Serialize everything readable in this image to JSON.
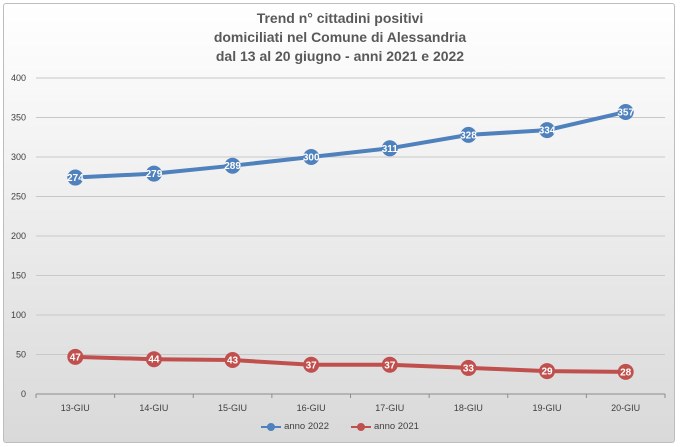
{
  "chart_data": {
    "type": "line",
    "title": [
      "Trend n° cittadini positivi",
      "domiciliati nel Comune di Alessandria",
      "dal 13 al 20 giugno - anni 2021 e 2022"
    ],
    "categories": [
      "13-GIU",
      "14-GIU",
      "15-GIU",
      "16-GIU",
      "17-GIU",
      "18-GIU",
      "19-GIU",
      "20-GIU"
    ],
    "series": [
      {
        "name": "anno 2022",
        "color": "#4f81bd",
        "values": [
          274,
          279,
          289,
          300,
          311,
          328,
          334,
          357
        ]
      },
      {
        "name": "anno 2021",
        "color": "#c0504d",
        "values": [
          47,
          44,
          43,
          37,
          37,
          33,
          29,
          28
        ]
      }
    ],
    "ylim": [
      0,
      400
    ],
    "yticks": [
      0,
      50,
      100,
      150,
      200,
      250,
      300,
      350,
      400
    ],
    "grid": true,
    "legend": "bottom",
    "data_labels": true
  }
}
